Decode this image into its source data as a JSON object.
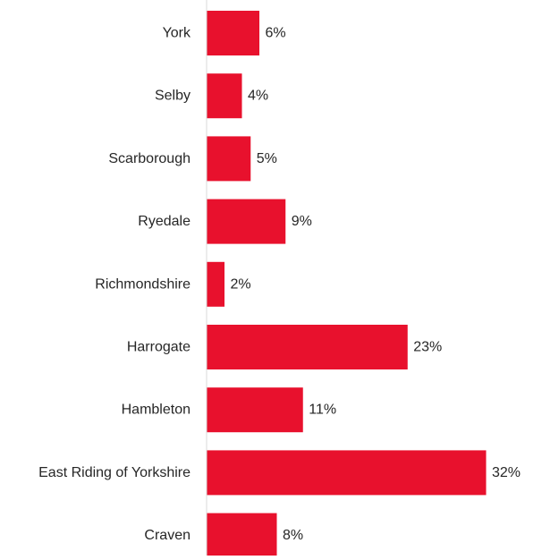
{
  "chart_data": {
    "type": "bar",
    "orientation": "horizontal",
    "categories": [
      "York",
      "Selby",
      "Scarborough",
      "Ryedale",
      "Richmondshire",
      "Harrogate",
      "Hambleton",
      "East Riding of Yorkshire",
      "Craven"
    ],
    "values": [
      6,
      4,
      5,
      9,
      2,
      23,
      11,
      32,
      8
    ],
    "value_labels": [
      "6%",
      "4%",
      "5%",
      "9%",
      "2%",
      "23%",
      "11%",
      "32%",
      "8%"
    ],
    "value_unit": "%",
    "title": "",
    "xlabel": "",
    "ylabel": "",
    "xlim": [
      0,
      32
    ],
    "grid": false,
    "legend": "none",
    "colors": {
      "bar": "#E8112D",
      "axis": "#D9D9D9",
      "text": "#262626"
    }
  }
}
